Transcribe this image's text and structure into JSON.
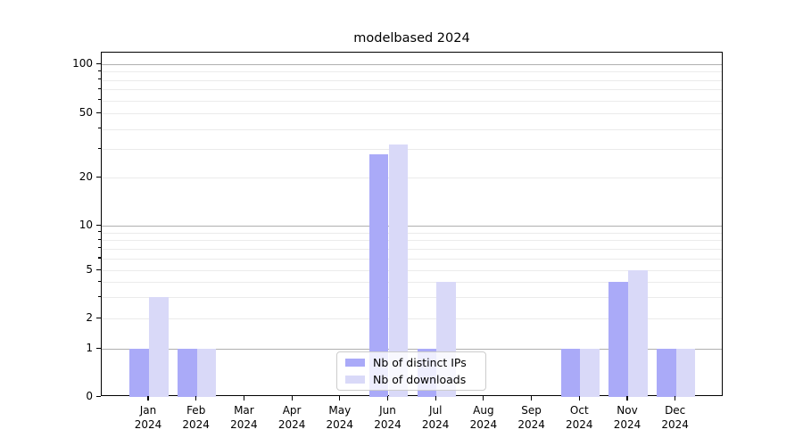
{
  "title": "modelbased 2024",
  "chart_data": {
    "type": "bar",
    "title": "modelbased 2024",
    "categories": [
      "Jan",
      "Feb",
      "Mar",
      "Apr",
      "May",
      "Jun",
      "Jul",
      "Aug",
      "Sep",
      "Oct",
      "Nov",
      "Dec"
    ],
    "category_year": "2024",
    "series": [
      {
        "name": "Nb of distinct IPs",
        "color": "#aaaaf8",
        "values": [
          1,
          1,
          0,
          0,
          0,
          28,
          1,
          0,
          0,
          1,
          4,
          1
        ]
      },
      {
        "name": "Nb of downloads",
        "color": "#d9d9f8",
        "values": [
          3,
          1,
          0,
          0,
          0,
          32,
          4,
          0,
          0,
          1,
          5,
          1
        ]
      }
    ],
    "ytick_labels": [
      "100",
      "50",
      "20",
      "10",
      "5",
      "2",
      "1",
      "0"
    ],
    "ytick_values": [
      100,
      50,
      20,
      10,
      5,
      2,
      1,
      0
    ],
    "scale": "log above 1, zero shown at baseline",
    "ylim": [
      0,
      120
    ],
    "grid": "horizontal, dark lines at 1/10/100, light minor lines",
    "legend_position": "bottom-center"
  },
  "colors": {
    "major_grid": "#b0b0b0",
    "minor_grid": "#ebebeb",
    "spine": "#000000",
    "bar_dark": "#aaaaf8",
    "bar_light": "#d9d9f8"
  }
}
